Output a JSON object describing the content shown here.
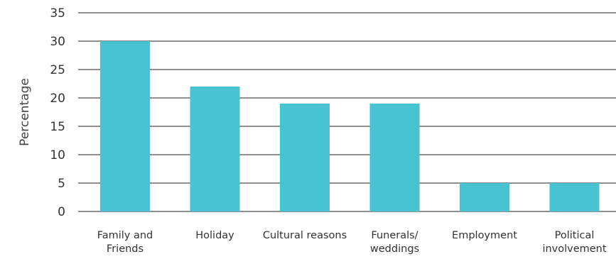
{
  "chart_data": {
    "type": "bar",
    "categories": [
      [
        "Family and",
        "Friends"
      ],
      [
        "Holiday"
      ],
      [
        "Cultural reasons"
      ],
      [
        "Funerals/",
        "weddings"
      ],
      [
        "Employment"
      ],
      [
        "Political",
        "involvement"
      ]
    ],
    "values": [
      30,
      22,
      19,
      19,
      5,
      5
    ],
    "ylabel": "Percentage",
    "xlabel": "",
    "title": "",
    "ylim": [
      0,
      35
    ],
    "yticks": [
      "0",
      "5",
      "10",
      "15",
      "20",
      "25",
      "30",
      "35"
    ],
    "grid": true,
    "legend": "none",
    "bar_color": "#47c3d1",
    "grid_color": "#222222"
  }
}
